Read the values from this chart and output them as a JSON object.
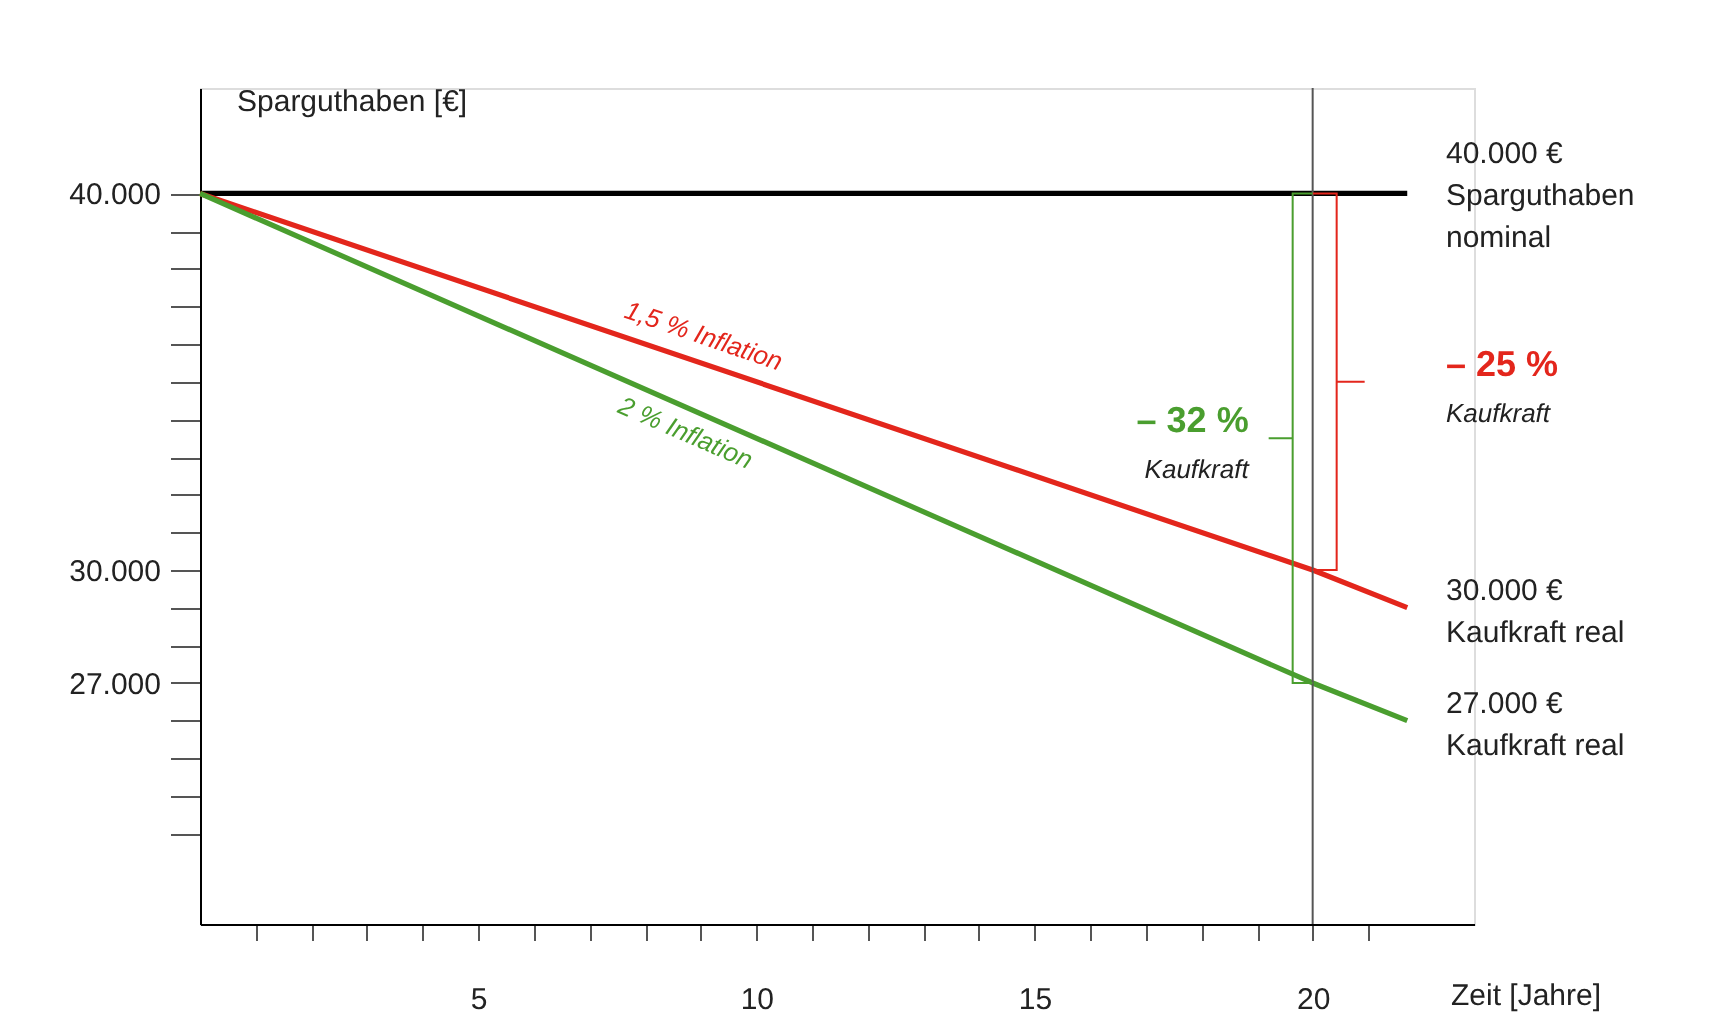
{
  "chart_data": {
    "type": "line",
    "xlabel": "Zeit [Jahre]",
    "ylabel": "Sparguthaben [€]",
    "grid": false,
    "xlim": [
      0,
      22.9
    ],
    "xticks": [
      {
        "value": 1,
        "label": null
      },
      {
        "value": 2,
        "label": null
      },
      {
        "value": 3,
        "label": null
      },
      {
        "value": 4,
        "label": null
      },
      5,
      {
        "value": 6,
        "label": null
      },
      {
        "value": 7,
        "label": null
      },
      {
        "value": 8,
        "label": null
      },
      {
        "value": 9,
        "label": null
      },
      10,
      {
        "value": 11,
        "label": null
      },
      {
        "value": 12,
        "label": null
      },
      {
        "value": 13,
        "label": null
      },
      {
        "value": 14,
        "label": null
      },
      15,
      {
        "value": 16,
        "label": null
      },
      {
        "value": 17,
        "label": null
      },
      {
        "value": 18,
        "label": null
      },
      {
        "value": 19,
        "label": null
      },
      20,
      {
        "value": 21,
        "label": null
      }
    ],
    "ylim": [
      20600,
      42800
    ],
    "yticks": [
      {
        "value": 23000,
        "label": null
      },
      {
        "value": 24000,
        "label": null
      },
      {
        "value": 25000,
        "label": null
      },
      {
        "value": 26000,
        "label": null
      },
      {
        "value": 27000,
        "label": "27.000"
      },
      {
        "value": 28000,
        "label": null
      },
      {
        "value": 29000,
        "label": null
      },
      {
        "value": 30000,
        "label": "30.000"
      },
      {
        "value": 31000,
        "label": null
      },
      {
        "value": 32000,
        "label": null
      },
      {
        "value": 33000,
        "label": null
      },
      {
        "value": 34000,
        "label": null
      },
      {
        "value": 35000,
        "label": null
      },
      {
        "value": 36000,
        "label": null
      },
      {
        "value": 37000,
        "label": null
      },
      {
        "value": 38000,
        "label": null
      },
      {
        "value": 39000,
        "label": null
      },
      {
        "value": 40000,
        "label": "40.000"
      }
    ],
    "series": [
      {
        "color": "#000000",
        "x": [
          0,
          21.7
        ],
        "values": [
          40000,
          40000
        ]
      },
      {
        "name": "1,5 % Inflation",
        "color": "#e3261c",
        "x": [
          0,
          20,
          21.7
        ],
        "values": [
          40000,
          30000,
          29000
        ]
      },
      {
        "name": "2 % Inflation",
        "color": "#4a9e2f",
        "x": [
          0,
          20,
          21.7
        ],
        "values": [
          40000,
          27000,
          26000
        ]
      }
    ],
    "ref_lines": [
      {
        "axis": "x",
        "value": 20,
        "color": "#555555"
      }
    ],
    "annotations": [
      "40.000 €\nSparguthaben\nnominal",
      "30.000 €\nKaufkraft real",
      "27.000 €\nKaufkraft real",
      "– 25 %\nKaufkraft",
      "– 32 %\nKaufkraft"
    ]
  }
}
